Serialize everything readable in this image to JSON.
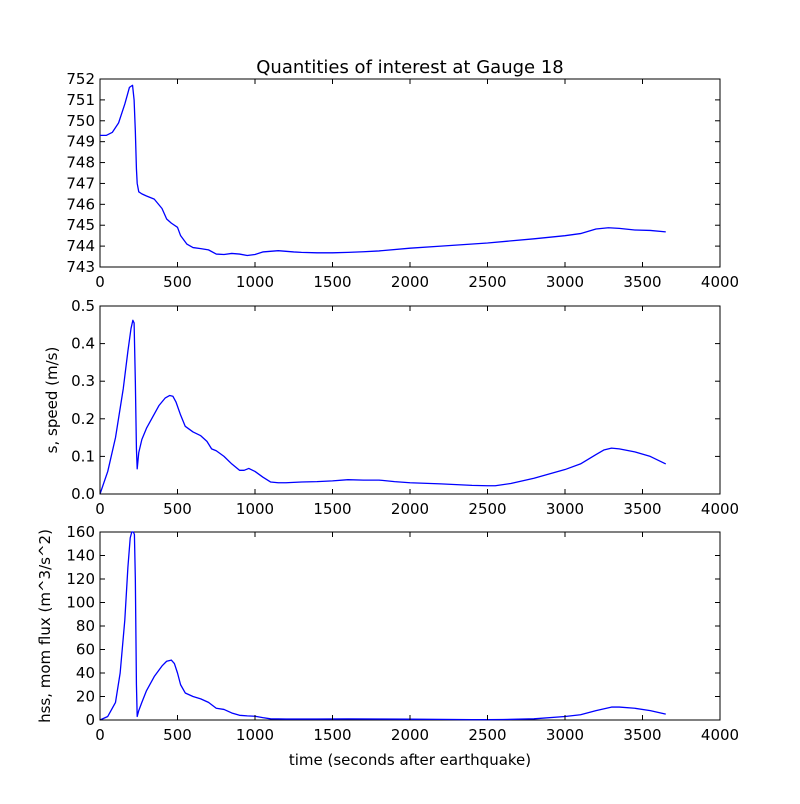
{
  "title": "Quantities of interest at Gauge 18",
  "line_color": "#0000ff",
  "chart_data": [
    {
      "type": "line",
      "title": "Quantities of interest at Gauge 18",
      "xlabel": "",
      "ylabel": "",
      "xlim": [
        0,
        4000
      ],
      "ylim": [
        743,
        752
      ],
      "xticks": [
        "0",
        "500",
        "1000",
        "1500",
        "2000",
        "2500",
        "3000",
        "3500",
        "4000"
      ],
      "yticks": [
        "743",
        "744",
        "745",
        "746",
        "747",
        "748",
        "749",
        "750",
        "751",
        "752"
      ],
      "grid": false,
      "series": [
        {
          "x": [
            0,
            40,
            80,
            120,
            160,
            190,
            210,
            220,
            228,
            235,
            240,
            250,
            270,
            300,
            350,
            400,
            430,
            460,
            500,
            520,
            560,
            600,
            650,
            700,
            750,
            800,
            850,
            900,
            950,
            1000,
            1050,
            1100,
            1150,
            1200,
            1250,
            1300,
            1400,
            1500,
            1600,
            1700,
            1800,
            2000,
            2200,
            2500,
            2800,
            3000,
            3100,
            3200,
            3280,
            3350,
            3450,
            3550,
            3650
          ],
          "y": [
            749.3,
            749.3,
            749.45,
            749.9,
            750.8,
            751.6,
            751.7,
            751.0,
            749.5,
            747.7,
            747.0,
            746.6,
            746.5,
            746.4,
            746.25,
            745.8,
            745.3,
            745.1,
            744.9,
            744.5,
            744.1,
            743.93,
            743.88,
            743.82,
            743.62,
            743.6,
            743.65,
            743.62,
            743.55,
            743.6,
            743.72,
            743.75,
            743.78,
            743.75,
            743.72,
            743.7,
            743.68,
            743.68,
            743.7,
            743.73,
            743.77,
            743.9,
            744.0,
            744.15,
            744.35,
            744.5,
            744.6,
            744.82,
            744.88,
            744.85,
            744.77,
            744.75,
            744.68
          ]
        }
      ]
    },
    {
      "type": "line",
      "title": "",
      "xlabel": "",
      "ylabel": "s, speed (m/s)",
      "xlim": [
        0,
        4000
      ],
      "ylim": [
        0,
        0.5
      ],
      "xticks": [
        "0",
        "500",
        "1000",
        "1500",
        "2000",
        "2500",
        "3000",
        "3500",
        "4000"
      ],
      "yticks": [
        "0.0",
        "0.1",
        "0.2",
        "0.3",
        "0.4",
        "0.5"
      ],
      "grid": false,
      "series": [
        {
          "x": [
            0,
            50,
            100,
            150,
            180,
            200,
            212,
            220,
            228,
            235,
            240,
            250,
            270,
            300,
            340,
            380,
            420,
            450,
            470,
            490,
            520,
            550,
            600,
            650,
            690,
            720,
            750,
            800,
            850,
            900,
            930,
            960,
            1000,
            1050,
            1100,
            1150,
            1200,
            1300,
            1400,
            1500,
            1600,
            1700,
            1800,
            1900,
            2000,
            2200,
            2400,
            2500,
            2550,
            2650,
            2800,
            3000,
            3100,
            3200,
            3250,
            3300,
            3350,
            3450,
            3550,
            3650
          ],
          "y": [
            0.0,
            0.06,
            0.15,
            0.28,
            0.38,
            0.44,
            0.462,
            0.455,
            0.3,
            0.12,
            0.067,
            0.11,
            0.145,
            0.175,
            0.205,
            0.235,
            0.255,
            0.262,
            0.26,
            0.245,
            0.21,
            0.18,
            0.165,
            0.155,
            0.14,
            0.12,
            0.115,
            0.1,
            0.08,
            0.063,
            0.063,
            0.068,
            0.06,
            0.045,
            0.032,
            0.03,
            0.03,
            0.032,
            0.033,
            0.035,
            0.038,
            0.037,
            0.037,
            0.033,
            0.03,
            0.027,
            0.023,
            0.022,
            0.022,
            0.028,
            0.042,
            0.065,
            0.08,
            0.105,
            0.117,
            0.122,
            0.12,
            0.112,
            0.1,
            0.08
          ]
        }
      ]
    },
    {
      "type": "line",
      "title": "",
      "xlabel": "time (seconds after earthquake)",
      "ylabel": "hss, mom flux (m^3/s^2)",
      "xlim": [
        0,
        4000
      ],
      "ylim": [
        0,
        160
      ],
      "xticks": [
        "0",
        "500",
        "1000",
        "1500",
        "2000",
        "2500",
        "3000",
        "3500",
        "4000"
      ],
      "yticks": [
        "0",
        "20",
        "40",
        "60",
        "80",
        "100",
        "120",
        "140",
        "160"
      ],
      "grid": false,
      "series": [
        {
          "x": [
            0,
            50,
            100,
            130,
            160,
            180,
            195,
            205,
            215,
            222,
            228,
            235,
            240,
            250,
            270,
            300,
            350,
            400,
            430,
            460,
            480,
            500,
            520,
            550,
            600,
            650,
            700,
            750,
            800,
            850,
            900,
            950,
            1000,
            1050,
            1100,
            1200,
            1400,
            1600,
            1800,
            2000,
            2200,
            2400,
            2500,
            2600,
            2800,
            3000,
            3100,
            3200,
            3300,
            3350,
            3450,
            3550,
            3650
          ],
          "y": [
            0.0,
            3,
            15,
            40,
            85,
            130,
            155,
            160,
            160,
            158,
            120,
            30,
            3,
            8,
            15,
            25,
            37,
            46,
            50,
            51,
            48,
            40,
            30,
            23,
            20,
            18,
            15,
            10,
            9,
            6,
            4,
            3.5,
            3.2,
            2,
            1,
            0.8,
            0.8,
            0.9,
            0.8,
            0.7,
            0.5,
            0.3,
            0.3,
            0.4,
            1,
            3,
            4.5,
            8,
            11,
            11,
            10,
            8,
            5
          ]
        }
      ]
    }
  ]
}
